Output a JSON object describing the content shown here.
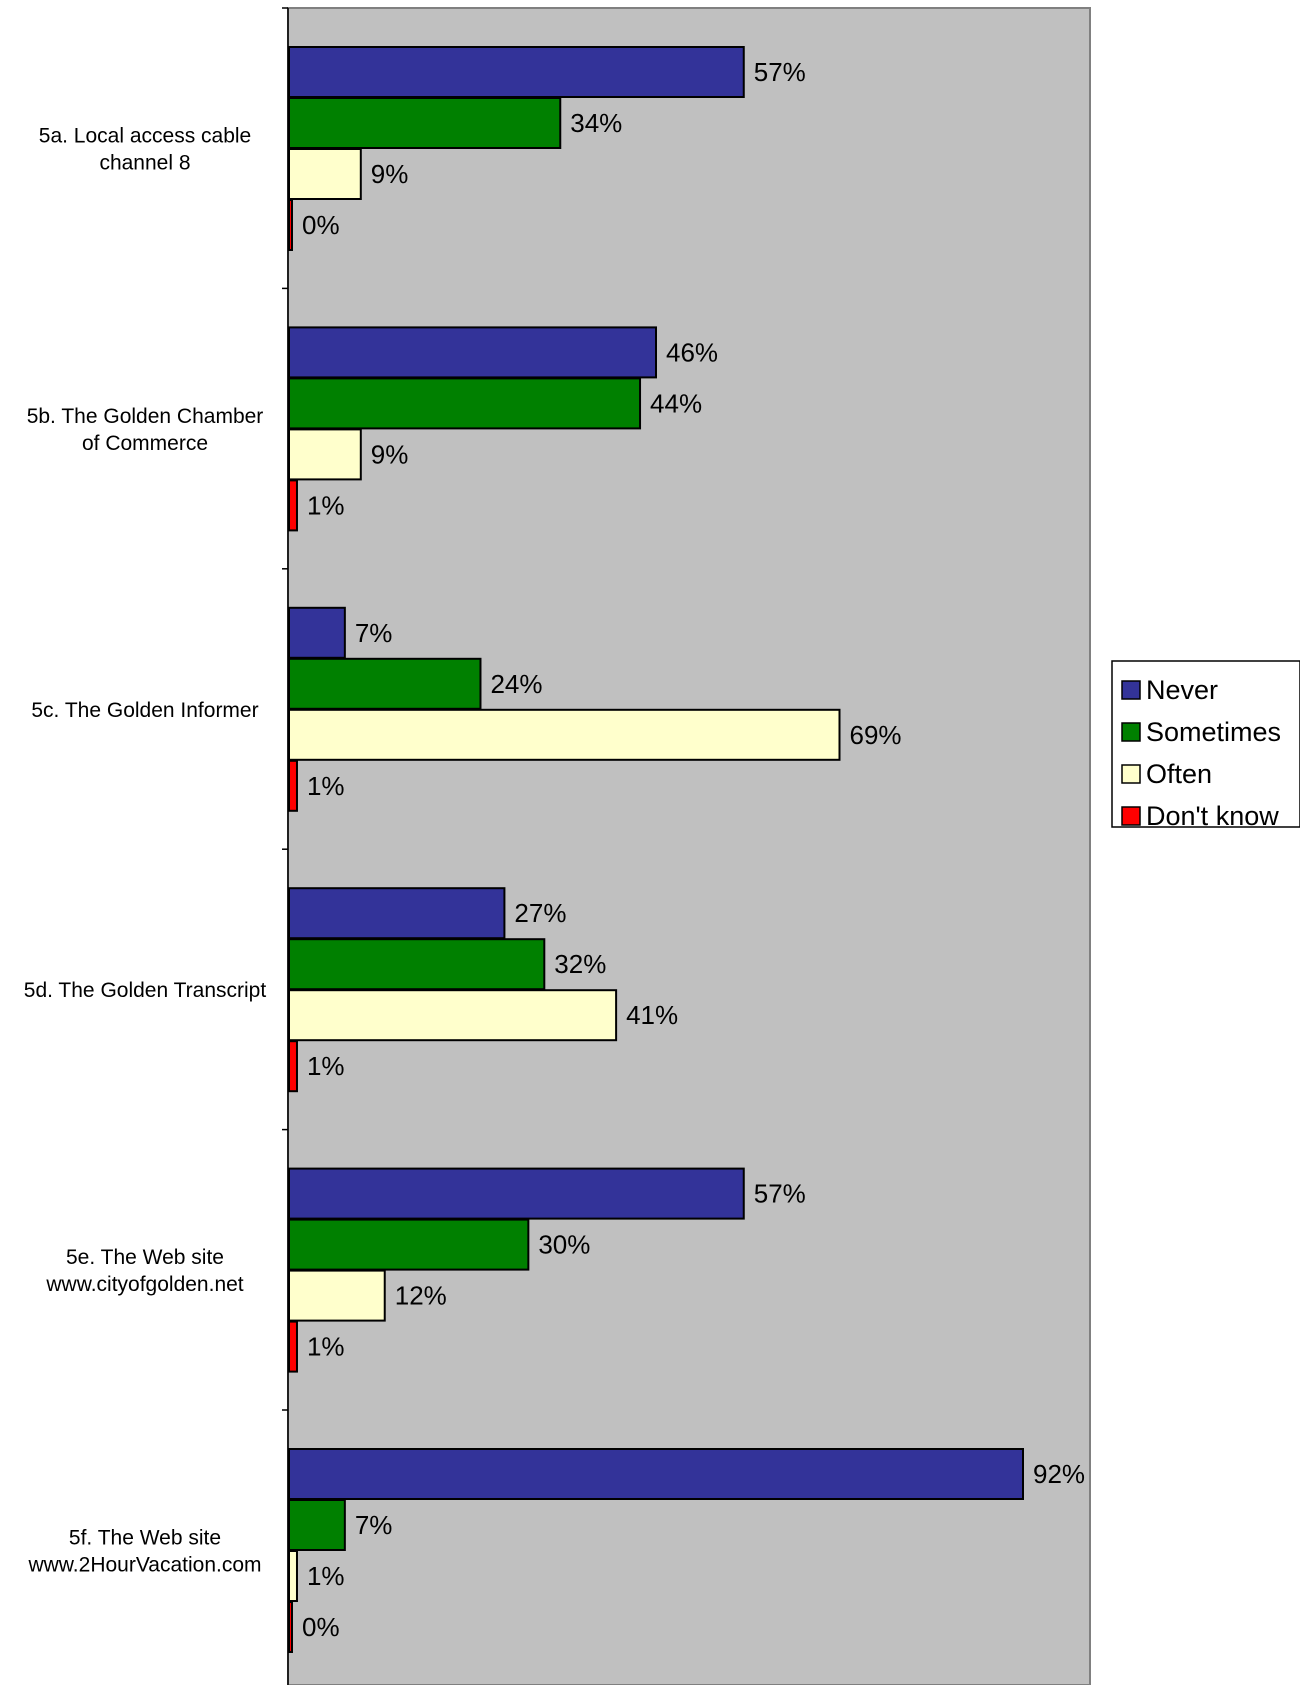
{
  "chart_data": {
    "type": "bar",
    "orientation": "horizontal",
    "categories": [
      [
        "5a. Local access cable",
        "channel 8"
      ],
      [
        "5b. The Golden Chamber",
        "of Commerce"
      ],
      [
        "5c. The Golden Informer"
      ],
      [
        "5d. The Golden Transcript"
      ],
      [
        "5e. The Web site",
        "www.cityofgolden.net"
      ],
      [
        "5f. The Web site",
        "www.2HourVacation.com"
      ]
    ],
    "series": [
      {
        "name": "Never",
        "color": "#333399",
        "values": [
          57,
          46,
          7,
          27,
          57,
          92
        ]
      },
      {
        "name": "Sometimes",
        "color": "#008000",
        "values": [
          34,
          44,
          24,
          32,
          30,
          7
        ]
      },
      {
        "name": "Often",
        "color": "#FFFFCC",
        "values": [
          9,
          9,
          69,
          41,
          12,
          1
        ]
      },
      {
        "name": "Don't know",
        "color": "#FF0000",
        "values": [
          0,
          1,
          1,
          1,
          1,
          0
        ]
      }
    ],
    "value_suffix": "%",
    "xlim": [
      0,
      100
    ],
    "plot_background": "#C0C0C0",
    "grid": false,
    "legend_position": "right"
  }
}
